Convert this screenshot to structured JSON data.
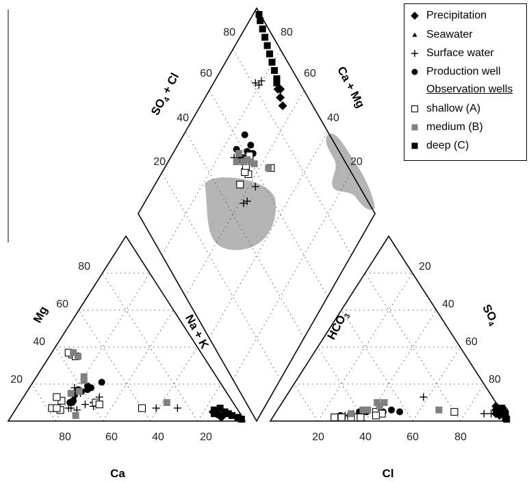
{
  "chart_data": {
    "type": "scatter",
    "subtype": "piper-trilinear",
    "title": "",
    "cation_triangle": {
      "axes": {
        "bottom": "Ca",
        "left": "Mg",
        "right": "Na + K"
      },
      "ticks": [
        "80",
        "60",
        "40",
        "20"
      ]
    },
    "anion_triangle": {
      "axes": {
        "bottom": "Cl",
        "left": "HCO3",
        "right": "SO4"
      },
      "ticks": [
        "20",
        "40",
        "60",
        "80"
      ]
    },
    "diamond": {
      "axes": {
        "upper_left": "SO4 + Cl",
        "upper_right": "Ca + Mg"
      },
      "ticks": [
        "80",
        "60",
        "40",
        "20"
      ]
    },
    "axis_labels": {
      "ca": "Ca",
      "mg": "Mg",
      "nak_main": "Na + K",
      "cl": "Cl",
      "hco3_main": "HCO",
      "hco3_sub": "3",
      "so4_main": "SO",
      "so4_sub": "4",
      "so4cl_a": "SO",
      "so4cl_sub": "4",
      "so4cl_b": " + Cl",
      "camg": "Ca + Mg"
    },
    "series": [
      {
        "key": "precipitation",
        "name": "Precipitation",
        "marker": "diamond-filled",
        "cation": [
          [
            8,
            3
          ],
          [
            9,
            3
          ],
          [
            10,
            5
          ],
          [
            11,
            5
          ],
          [
            10,
            4
          ],
          [
            9,
            2
          ]
        ],
        "anion": [
          [
            91,
            8
          ],
          [
            92,
            6
          ],
          [
            93,
            5
          ],
          [
            94,
            4
          ],
          [
            95,
            3
          ],
          [
            93,
            4
          ]
        ],
        "diamond": [
          [
            13,
            35
          ],
          [
            12,
            32
          ],
          [
            10,
            30
          ],
          [
            11,
            29
          ]
        ]
      },
      {
        "key": "seawater",
        "name": "Seawater",
        "marker": "triangle-filled",
        "cation": [],
        "anion": [],
        "diamond": []
      },
      {
        "key": "surface",
        "name": "Surface water",
        "marker": "plus",
        "cation": [
          [
            71,
            7
          ],
          [
            68,
            6
          ],
          [
            70,
            7
          ],
          [
            63,
            9
          ],
          [
            60,
            8
          ],
          [
            55,
            13
          ],
          [
            59,
            10
          ],
          [
            62,
            15
          ],
          [
            63,
            18
          ],
          [
            25,
            7
          ],
          [
            34,
            7
          ]
        ],
        "anion": [
          [
            58,
            13
          ],
          [
            88,
            4
          ],
          [
            91,
            4
          ],
          [
            30,
            3
          ],
          [
            33,
            4
          ]
        ],
        "diamond": [
          [
            51,
            43
          ],
          [
            53,
            42
          ],
          [
            46,
            27
          ],
          [
            44,
            43
          ],
          [
            16,
            20
          ],
          [
            19,
            18
          ],
          [
            18,
            20
          ]
        ]
      },
      {
        "key": "production",
        "name": "Production well",
        "marker": "circle-filled",
        "cation": [
          [
            68,
            10
          ],
          [
            67,
            11
          ],
          [
            69,
            10
          ],
          [
            65,
            14
          ],
          [
            62,
            17
          ],
          [
            61,
            16
          ],
          [
            58,
            17
          ],
          [
            56,
            18
          ],
          [
            57,
            19
          ],
          [
            50,
            21
          ]
        ],
        "anion": [
          [
            28,
            3
          ],
          [
            32,
            3
          ],
          [
            35,
            5
          ],
          [
            38,
            5
          ],
          [
            42,
            5
          ],
          [
            45,
            5
          ],
          [
            48,
            6
          ],
          [
            52,
            5
          ]
        ],
        "diamond": [
          [
            44,
            30
          ],
          [
            42,
            31
          ],
          [
            39,
            31
          ],
          [
            38,
            33
          ],
          [
            37,
            34
          ],
          [
            36,
            31
          ],
          [
            36,
            26
          ],
          [
            43,
            26
          ]
        ]
      },
      {
        "key": "shallow",
        "name": "shallow (A)",
        "marker": "square-open",
        "cation": [
          [
            78,
            7
          ],
          [
            75,
            6
          ],
          [
            76,
            7
          ],
          [
            72,
            11
          ],
          [
            73,
            13
          ],
          [
            58,
            10
          ],
          [
            57,
            9
          ],
          [
            40,
            7
          ],
          [
            55,
            36
          ],
          [
            56,
            37
          ],
          [
            54,
            35
          ]
        ],
        "anion": [
          [
            26,
            2
          ],
          [
            29,
            2
          ],
          [
            33,
            2
          ],
          [
            37,
            2
          ],
          [
            42,
            5
          ],
          [
            45,
            4
          ],
          [
            43,
            3
          ],
          [
            75,
            5
          ]
        ],
        "diamond": [
          [
            50,
            36
          ],
          [
            44,
            37
          ],
          [
            45,
            35
          ],
          [
            43,
            34
          ],
          [
            39,
            33
          ],
          [
            33,
            45
          ]
        ]
      },
      {
        "key": "medium",
        "name": "medium (B)",
        "marker": "square-filled-gray",
        "cation": [
          [
            70,
            3
          ],
          [
            66,
            15
          ],
          [
            62,
            16
          ],
          [
            57,
            22
          ],
          [
            56,
            24
          ],
          [
            53,
            35
          ],
          [
            54,
            37
          ],
          [
            28,
            10
          ]
        ],
        "anion": [
          [
            32,
            4
          ],
          [
            36,
            6
          ],
          [
            38,
            6
          ],
          [
            40,
            10
          ],
          [
            42,
            8
          ],
          [
            43,
            10
          ],
          [
            68,
            6
          ]
        ],
        "diamond": [
          [
            43,
            32
          ],
          [
            41,
            33
          ],
          [
            40,
            35
          ],
          [
            39,
            37
          ],
          [
            46,
            29
          ],
          [
            43,
            28
          ],
          [
            34,
            44
          ]
        ]
      },
      {
        "key": "deep",
        "name": "deep (C)",
        "marker": "square-filled",
        "cation": [
          [
            11,
            4
          ],
          [
            10,
            6
          ],
          [
            7,
            7
          ],
          [
            6,
            5
          ],
          [
            5,
            4
          ],
          [
            4,
            3
          ],
          [
            2,
            2
          ],
          [
            1,
            1
          ]
        ],
        "anion": [
          [
            94,
            7
          ],
          [
            95,
            6
          ],
          [
            96,
            5
          ],
          [
            97,
            4
          ],
          [
            98,
            2
          ],
          [
            99,
            1
          ]
        ],
        "diamond": [
          [
            10,
            27
          ],
          [
            9,
            26
          ],
          [
            8,
            23
          ],
          [
            7,
            20
          ],
          [
            6,
            17
          ],
          [
            5,
            14
          ],
          [
            4,
            11
          ],
          [
            3,
            8
          ],
          [
            2,
            5
          ],
          [
            1,
            3
          ]
        ]
      }
    ],
    "legend": {
      "position": "top-right",
      "group_heading": "Observation wells",
      "entries": [
        {
          "name": "Precipitation",
          "marker": "diamond-filled"
        },
        {
          "name": "Seawater",
          "marker": "triangle-filled"
        },
        {
          "name": "Surface water",
          "marker": "plus"
        },
        {
          "name": "Production well",
          "marker": "circle-filled"
        },
        {
          "name": "shallow (A)",
          "marker": "square-open"
        },
        {
          "name": "medium (B)",
          "marker": "square-filled-gray"
        },
        {
          "name": "deep (C)",
          "marker": "square-filled"
        }
      ]
    },
    "colors": {
      "gray_marker": "#808080",
      "field_fill": "#b4b4b4",
      "frame": "#000000"
    },
    "grid": true
  }
}
